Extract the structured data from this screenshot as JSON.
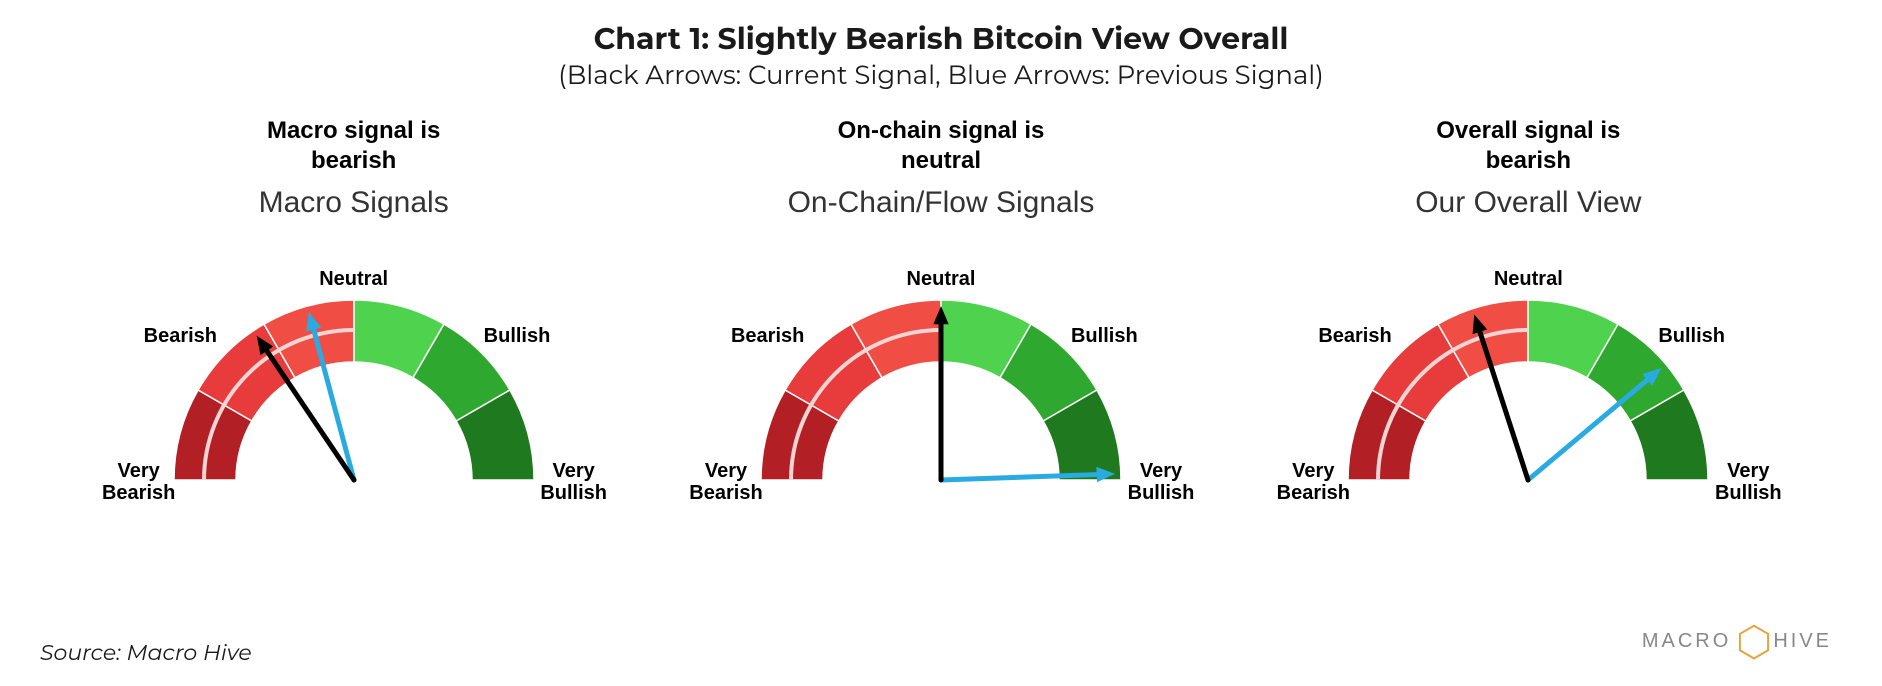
{
  "header": {
    "title": "Chart 1: Slightly Bearish Bitcoin View Overall",
    "subtitle": "(Black Arrows: Current Signal, Blue Arrows: Previous Signal)",
    "title_fontsize": 30,
    "subtitle_fontsize": 26,
    "title_color": "#1a1a1a"
  },
  "gauge_style": {
    "type": "gauge-semicircle",
    "outer_radius": 180,
    "inner_radius": 118,
    "accent_radius": 150,
    "accent_stroke": "#f5d4d4",
    "accent_width": 4,
    "divider_stroke": "#ffffff",
    "divider_width": 1.5,
    "needle_current_color": "#000000",
    "needle_previous_color": "#29abe2",
    "needle_width": 5,
    "arrowhead_size": 14,
    "segments": [
      {
        "from_deg": 180,
        "to_deg": 150,
        "fill": "#b21f24",
        "label": "Very\nBearish"
      },
      {
        "from_deg": 150,
        "to_deg": 120,
        "fill": "#e83b3b",
        "label": "Bearish"
      },
      {
        "from_deg": 120,
        "to_deg": 90,
        "fill": "#f04e45",
        "label": "Neutral"
      },
      {
        "from_deg": 90,
        "to_deg": 60,
        "fill": "#4fd34f",
        "label": null
      },
      {
        "from_deg": 60,
        "to_deg": 30,
        "fill": "#2fa82f",
        "label": "Bullish"
      },
      {
        "from_deg": 30,
        "to_deg": 0,
        "fill": "#1f7a1f",
        "label": "Very\nBullish"
      }
    ],
    "tick_labels": {
      "very_bearish": "Very\nBearish",
      "bearish": "Bearish",
      "neutral": "Neutral",
      "bullish": "Bullish",
      "very_bullish": "Very\nBullish"
    },
    "tick_fontsize": 20,
    "tick_fontweight": 700
  },
  "gauges": [
    {
      "id": "macro",
      "signal_text": "Macro signal is\nbearish",
      "name": "Macro Signals",
      "current_angle_deg": 124,
      "previous_angle_deg": 105,
      "accent_span_deg": [
        180,
        90
      ]
    },
    {
      "id": "onchain",
      "signal_text": "On-chain signal is\nneutral",
      "name": "On-Chain/Flow Signals",
      "current_angle_deg": 90,
      "previous_angle_deg": 2,
      "accent_span_deg": [
        180,
        90
      ]
    },
    {
      "id": "overall",
      "signal_text": "Overall signal is\nbearish",
      "name": "Our Overall View",
      "current_angle_deg": 108,
      "previous_angle_deg": 40,
      "accent_span_deg": [
        180,
        90
      ]
    }
  ],
  "source": "Source: Macro Hive",
  "brand": {
    "text": "MACRO",
    "hive_text": "HIVE",
    "text_color": "#888888",
    "hex_stroke": "#e8a33d",
    "hex_size": 34
  },
  "background_color": "#ffffff"
}
